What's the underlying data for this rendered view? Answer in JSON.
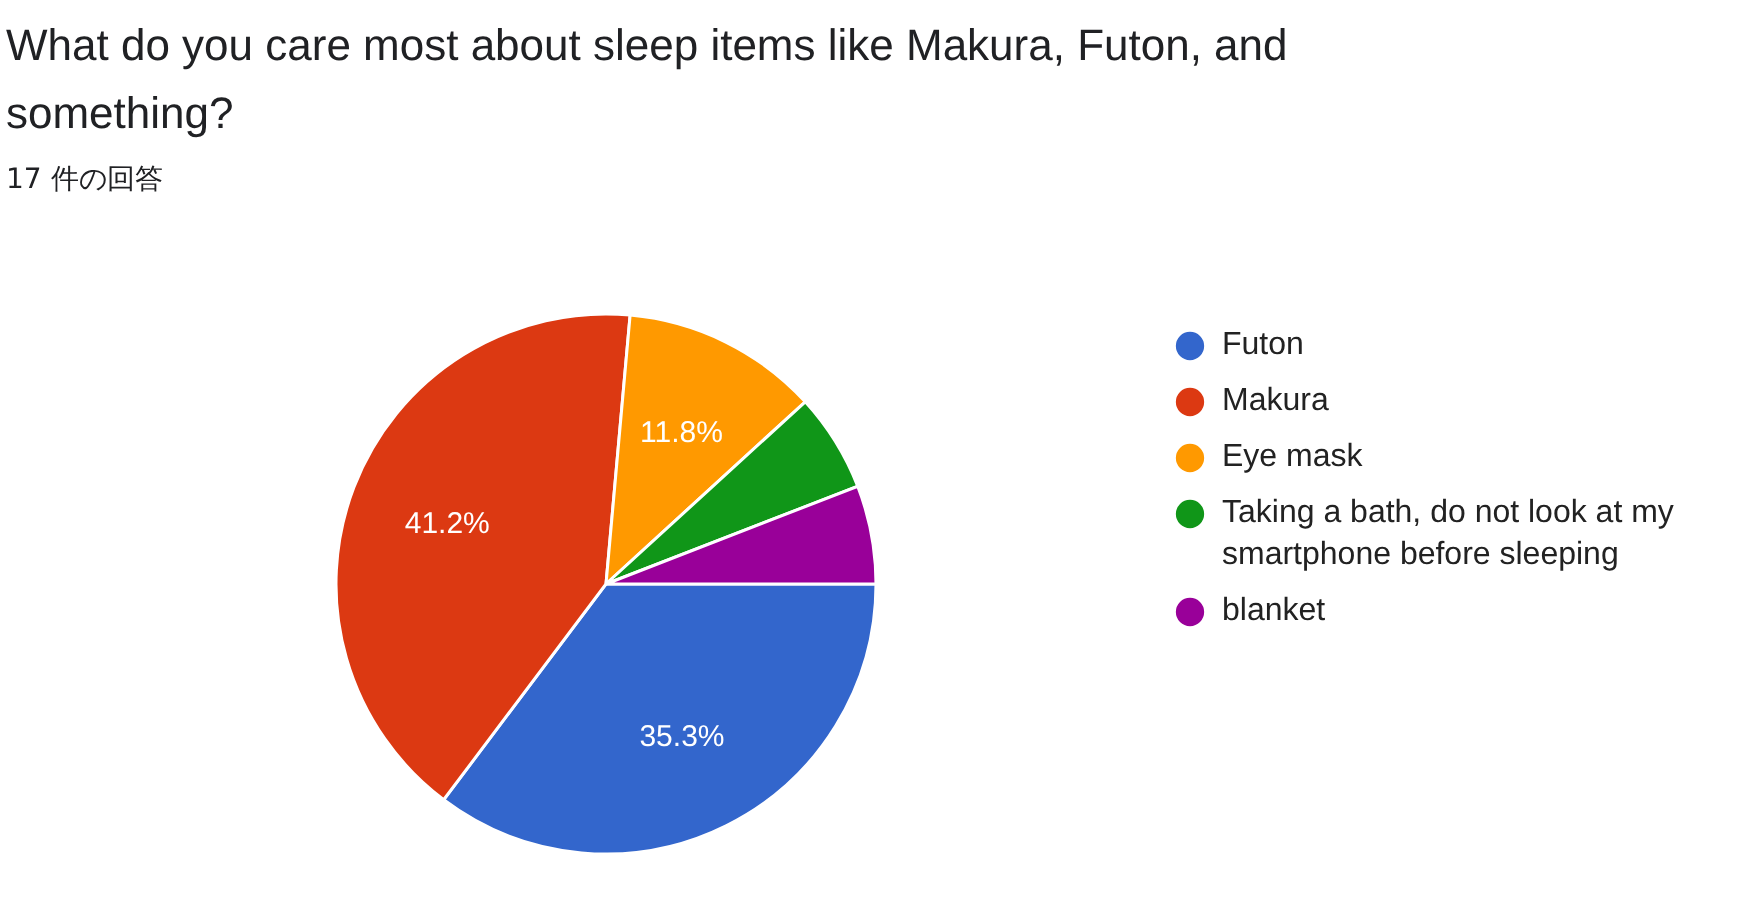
{
  "chart_data": {
    "type": "pie",
    "title": "What do you care most about sleep items like Makura, Futon, and something?",
    "subtitle": "17 件の回答",
    "categories": [
      "Futon",
      "Makura",
      "Eye mask",
      "Taking a bath, do not look at my smartphone before sleeping",
      "blanket"
    ],
    "values": [
      35.3,
      41.2,
      11.8,
      5.9,
      5.9
    ],
    "colors": [
      "#3366cc",
      "#dc3912",
      "#ff9900",
      "#109618",
      "#990099"
    ],
    "value_labels": [
      "35.3%",
      "41.2%",
      "11.8%",
      null,
      null
    ],
    "legend": "right"
  }
}
